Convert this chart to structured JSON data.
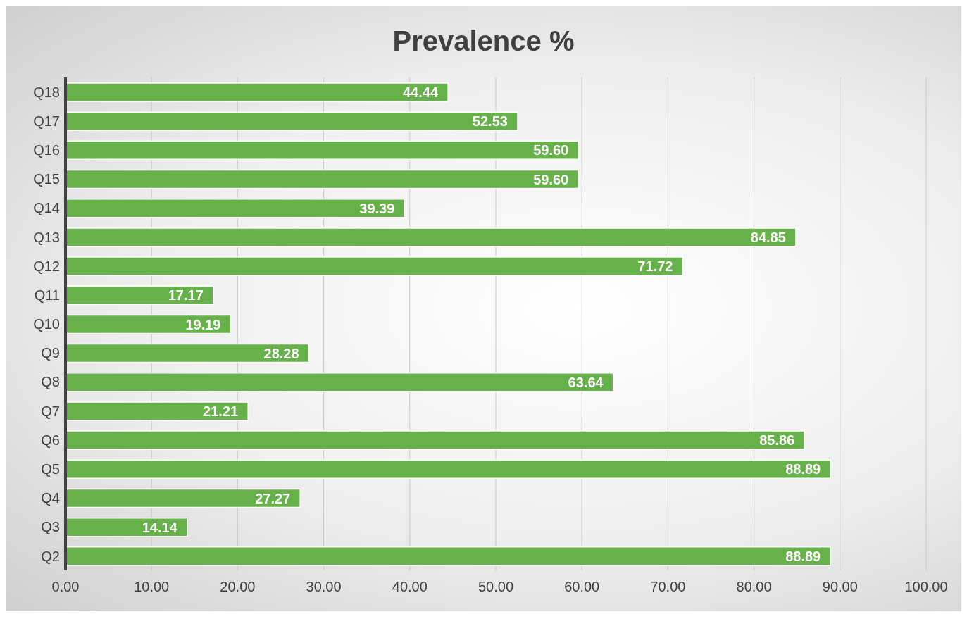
{
  "chart_data": {
    "type": "bar",
    "orientation": "horizontal",
    "title": "Prevalence %",
    "categories": [
      "Q18",
      "Q17",
      "Q16",
      "Q15",
      "Q14",
      "Q13",
      "Q12",
      "Q11",
      "Q10",
      "Q9",
      "Q8",
      "Q7",
      "Q6",
      "Q5",
      "Q4",
      "Q3",
      "Q2"
    ],
    "values": [
      44.44,
      52.53,
      59.6,
      59.6,
      39.39,
      84.85,
      71.72,
      17.17,
      19.19,
      28.28,
      63.64,
      21.21,
      85.86,
      88.89,
      27.27,
      14.14,
      88.89
    ],
    "value_labels": [
      "44.44",
      "52.53",
      "59.60",
      "59.60",
      "39.39",
      "84.85",
      "71.72",
      "17.17",
      "19.19",
      "28.28",
      "63.64",
      "21.21",
      "85.86",
      "88.89",
      "27.27",
      "14.14",
      "88.89"
    ],
    "color": "#67b14a",
    "xlim": [
      0,
      100
    ],
    "xticks": [
      {
        "value": 0,
        "label": "0.00"
      },
      {
        "value": 10,
        "label": "10.00"
      },
      {
        "value": 20,
        "label": "20.00"
      },
      {
        "value": 30,
        "label": "30.00"
      },
      {
        "value": 40,
        "label": "40.00"
      },
      {
        "value": 50,
        "label": "50.00"
      },
      {
        "value": 60,
        "label": "60.00"
      },
      {
        "value": 70,
        "label": "70.00"
      },
      {
        "value": 80,
        "label": "80.00"
      },
      {
        "value": 90,
        "label": "90.00"
      },
      {
        "value": 100,
        "label": "100.00"
      }
    ],
    "grid": "x"
  }
}
